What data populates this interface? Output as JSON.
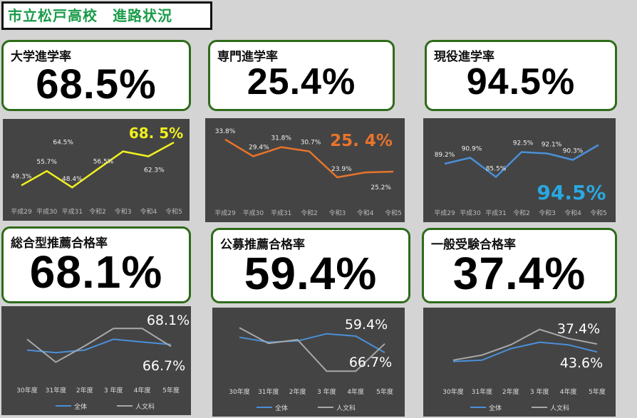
{
  "page_title": "市立松戸高校　進路状況",
  "cards": [
    {
      "label": "大学進学率",
      "value": "68.5%"
    },
    {
      "label": "専門進学率",
      "value": "25.4%"
    },
    {
      "label": "現役進学率",
      "value": "94.5%"
    },
    {
      "label": "総合型推薦合格率",
      "value": "68.1%"
    },
    {
      "label": "公募推薦合格率",
      "value": "59.4%"
    },
    {
      "label": "一般受験合格率",
      "value": "37.4%"
    }
  ],
  "colors": {
    "title_green": "#1a9b4a",
    "card_border": "#2e6b1a",
    "panel_bg": "#444444",
    "yellow": "#f0f020",
    "orange": "#e8742c",
    "blue": "#4a90d9",
    "gray": "#a8a8a8"
  },
  "chart_data": [
    {
      "type": "line",
      "categories": [
        "平成29",
        "平成30",
        "平成31",
        "令和2",
        "令和3",
        "令和4",
        "令和5"
      ],
      "series": [
        {
          "values": [
            49.3,
            55.7,
            48.4,
            56.5,
            64.5,
            62.3,
            68.5
          ]
        }
      ],
      "data_labels": [
        "49.3%",
        "55.7%",
        "48.4%",
        "56.5%",
        "64.5%",
        "62.3%"
      ],
      "highlight_label": "68. 5%"
    },
    {
      "type": "line",
      "categories": [
        "平成29",
        "平成30",
        "平成31",
        "令和2",
        "令和3",
        "令和4",
        "令和5"
      ],
      "series": [
        {
          "values": [
            33.8,
            29.4,
            31.8,
            30.7,
            23.9,
            25.2,
            25.4
          ]
        }
      ],
      "data_labels": [
        "33.8%",
        "29.4%",
        "31.8%",
        "30.7%",
        "23.9%",
        "25.2%"
      ],
      "highlight_label": "25. 4%"
    },
    {
      "type": "line",
      "categories": [
        "平成29",
        "平成30",
        "平成31",
        "令和2",
        "令和3",
        "令和4",
        "令和5"
      ],
      "series": [
        {
          "values": [
            89.2,
            90.9,
            85.5,
            92.5,
            92.1,
            90.3,
            94.5
          ]
        }
      ],
      "data_labels": [
        "89.2%",
        "90.9%",
        "85.5%",
        "92.5%",
        "92.1%",
        "90.3%"
      ],
      "highlight_label": "94.5%"
    },
    {
      "type": "line",
      "categories": [
        "30年度",
        "31年度",
        "2年度",
        "3 年度",
        "4年度",
        "5年度"
      ],
      "series": [
        {
          "name": "全体",
          "values": [
            64,
            62,
            64,
            72,
            70,
            68.1
          ]
        },
        {
          "name": "人文科",
          "values": [
            72,
            55,
            67,
            80,
            80,
            66.7
          ]
        }
      ],
      "value_labels": [
        "68.1%",
        "66.7%"
      ]
    },
    {
      "type": "line",
      "categories": [
        "30年度",
        "31年度",
        "2年度",
        "3 年度",
        "4年度",
        "5年度"
      ],
      "series": [
        {
          "name": "全体",
          "values": [
            72,
            68,
            69,
            75,
            73,
            59.4
          ]
        },
        {
          "name": "人文科",
          "values": [
            80,
            67,
            70,
            44,
            44,
            66.7
          ]
        }
      ],
      "value_labels": [
        "59.4%",
        "66.7%"
      ]
    },
    {
      "type": "line",
      "categories": [
        "30年度",
        "31年度",
        "2年度",
        "3 年度",
        "4年度",
        "5年度"
      ],
      "series": [
        {
          "name": "全体",
          "values": [
            30,
            31,
            40,
            45,
            43,
            37.4
          ]
        },
        {
          "name": "人文科",
          "values": [
            31,
            35,
            43,
            55,
            48,
            43.6
          ]
        }
      ],
      "value_labels": [
        "37.4%",
        "43.6%"
      ]
    }
  ]
}
